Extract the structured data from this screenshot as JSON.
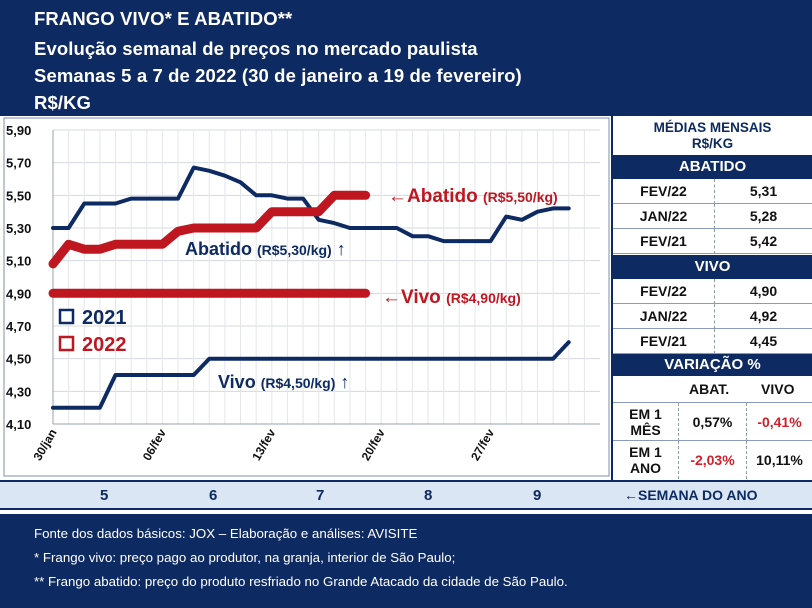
{
  "header": {
    "line1": "FRANGO VIVO* E ABATIDO**",
    "line2": "Evolução semanal de preços no mercado paulista",
    "line3": "Semanas 5 a 7 de 2022 (30 de janeiro a 19 de fevereiro)",
    "line4": "R$/KG"
  },
  "chart_data": {
    "type": "line",
    "ylim": [
      4.1,
      5.9
    ],
    "y_ticks": [
      "5,90",
      "5,70",
      "5,50",
      "5,30",
      "5,10",
      "4,90",
      "4,70",
      "4,50",
      "4,30",
      "4,10"
    ],
    "x_ticks": [
      "30/jan",
      "06/fev",
      "13/fev",
      "20/fev",
      "27/fev"
    ],
    "x_tick_days": [
      0,
      7,
      14,
      21,
      28
    ],
    "x_range_days": [
      0,
      35
    ],
    "grid": true,
    "legend": [
      "2021",
      "2022"
    ],
    "colors": {
      "2021": "#0e2a63",
      "2022": "#c0161f"
    },
    "series": [
      {
        "name": "2021",
        "group": "abatido",
        "x": [
          0,
          1,
          2,
          3,
          4,
          5,
          6,
          7,
          8,
          9,
          10,
          11,
          12,
          13,
          14,
          15,
          16,
          17,
          18,
          19,
          20,
          21,
          22,
          23,
          24,
          25,
          26,
          27,
          28,
          29,
          30,
          31,
          32,
          33
        ],
        "y": [
          5.3,
          5.3,
          5.45,
          5.45,
          5.45,
          5.48,
          5.48,
          5.48,
          5.48,
          5.67,
          5.65,
          5.62,
          5.58,
          5.5,
          5.5,
          5.48,
          5.48,
          5.35,
          5.33,
          5.3,
          5.3,
          5.3,
          5.3,
          5.25,
          5.25,
          5.22,
          5.22,
          5.22,
          5.22,
          5.37,
          5.35,
          5.4,
          5.42,
          5.42
        ]
      },
      {
        "name": "2021",
        "group": "vivo",
        "x": [
          0,
          1,
          2,
          3,
          4,
          5,
          6,
          7,
          8,
          9,
          10,
          11,
          12,
          13,
          14,
          15,
          16,
          17,
          18,
          19,
          20,
          21,
          22,
          23,
          24,
          25,
          26,
          27,
          28,
          29,
          30,
          31,
          32,
          33
        ],
        "y": [
          4.2,
          4.2,
          4.2,
          4.2,
          4.4,
          4.4,
          4.4,
          4.4,
          4.4,
          4.4,
          4.5,
          4.5,
          4.5,
          4.5,
          4.5,
          4.5,
          4.5,
          4.5,
          4.5,
          4.5,
          4.5,
          4.5,
          4.5,
          4.5,
          4.5,
          4.5,
          4.5,
          4.5,
          4.5,
          4.5,
          4.5,
          4.5,
          4.5,
          4.6
        ]
      },
      {
        "name": "2022",
        "group": "abatido",
        "x": [
          0,
          1,
          2,
          3,
          4,
          5,
          6,
          7,
          8,
          9,
          10,
          11,
          12,
          13,
          14,
          15,
          16,
          17,
          18,
          19,
          20
        ],
        "y": [
          5.08,
          5.2,
          5.17,
          5.17,
          5.2,
          5.2,
          5.2,
          5.2,
          5.28,
          5.3,
          5.3,
          5.3,
          5.3,
          5.3,
          5.4,
          5.4,
          5.4,
          5.4,
          5.5,
          5.5,
          5.5
        ]
      },
      {
        "name": "2022",
        "group": "vivo",
        "x": [
          0,
          20
        ],
        "y": [
          4.9,
          4.9
        ]
      }
    ],
    "annotations": [
      {
        "text": "←Abatido",
        "value": "(R$5,50/kg)",
        "color": "#c0161f"
      },
      {
        "text": "Abatido",
        "value": "(R$5,30/kg)",
        "arrow": "↑",
        "color": "#0e2a63"
      },
      {
        "text": "←Vivo",
        "value": "(R$4,90/kg)",
        "color": "#c0161f"
      },
      {
        "text": "Vivo",
        "value": "(R$4,50/kg)",
        "arrow": "↑",
        "color": "#0e2a63"
      }
    ]
  },
  "side": {
    "caption1": "MÉDIAS MENSAIS",
    "caption2": "R$/KG",
    "abatido_title": "ABATIDO",
    "abatido_rows": [
      {
        "label": "FEV/22",
        "value": "5,31"
      },
      {
        "label": "JAN/22",
        "value": "5,28"
      },
      {
        "label": "FEV/21",
        "value": "5,42"
      }
    ],
    "vivo_title": "VIVO",
    "vivo_rows": [
      {
        "label": "FEV/22",
        "value": "4,90"
      },
      {
        "label": "JAN/22",
        "value": "4,92"
      },
      {
        "label": "FEV/21",
        "value": "4,45"
      }
    ],
    "variacao_title": "VARIAÇÃO %",
    "col_abat": "ABAT.",
    "col_vivo": "VIVO",
    "var_rows": [
      {
        "l1": "EM 1",
        "l2": "MÊS",
        "abat": "0,57%",
        "vivo": "-0,41%"
      },
      {
        "l1": "EM 1",
        "l2": "ANO",
        "abat": "-2,03%",
        "vivo": "10,11%"
      }
    ],
    "positive_color": "#111111",
    "negative_color": "#d0202a"
  },
  "weeks": {
    "numbers": [
      "5",
      "6",
      "7",
      "8",
      "9"
    ],
    "label": "←SEMANA DO ANO"
  },
  "footer": {
    "line1": "Fonte dos dados básicos: JOX – Elaboração e análises: AVISITE",
    "line2": "*   Frango vivo: preço pago ao produtor, na granja, interior de São Paulo;",
    "line3": "** Frango abatido: preço do produto resfriado no Grande Atacado da cidade de São Paulo."
  }
}
